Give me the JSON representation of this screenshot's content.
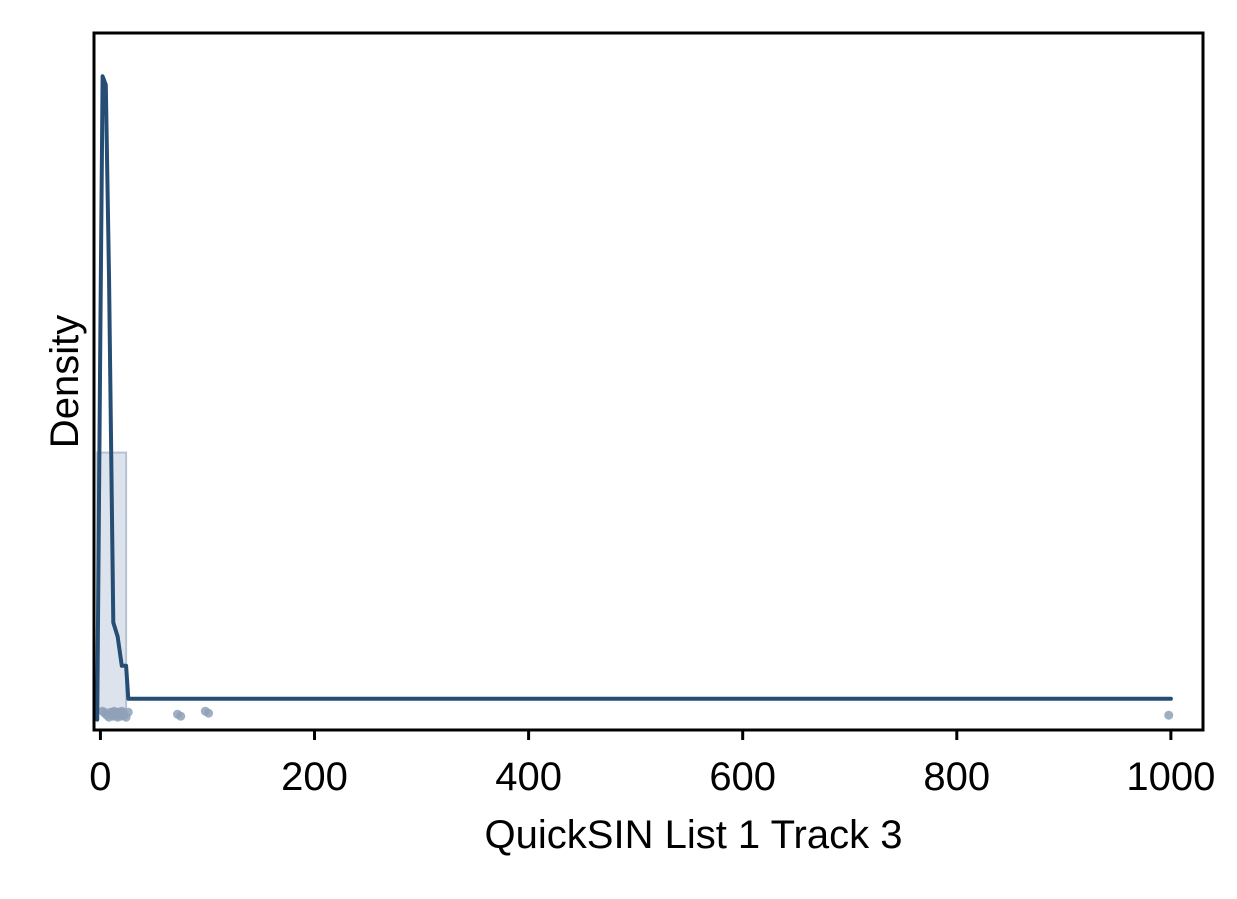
{
  "chart_data": {
    "type": "area",
    "title": "",
    "xlabel": "QuickSIN List 1 Track 3",
    "ylabel": "Density",
    "xlim": [
      -6,
      1030
    ],
    "ylim": [
      -0.012,
      0.39
    ],
    "x_ticks": [
      0,
      200,
      400,
      600,
      800,
      1000
    ],
    "x_tick_labels": [
      "0",
      "200",
      "400",
      "600",
      "800",
      "1000"
    ],
    "y_ticks_shown": false,
    "grid": false,
    "legend": "none",
    "colors": {
      "density_line": "#264d73",
      "histogram_fill": "#dde3ec",
      "histogram_edge": "#b8c3d2",
      "rug_points": "#8ea1b8"
    },
    "histogram": {
      "bins": [
        {
          "x0": -3,
          "x1": 24,
          "density": 0.148
        }
      ]
    },
    "density_curve": {
      "x": [
        -3,
        0,
        2,
        5,
        8,
        12,
        16,
        20,
        24,
        26,
        30,
        60,
        100,
        400,
        700,
        1000
      ],
      "y": [
        -0.006,
        0.22,
        0.365,
        0.36,
        0.25,
        0.05,
        0.042,
        0.025,
        0.025,
        0.006,
        0.006,
        0.006,
        0.006,
        0.006,
        0.006,
        0.006
      ]
    },
    "rug_points": {
      "x": [
        2,
        4,
        6,
        8,
        10,
        11,
        12,
        13,
        14,
        15,
        16,
        17,
        18,
        19,
        20,
        21,
        22,
        24,
        26,
        72,
        75,
        98,
        101,
        998
      ]
    }
  }
}
